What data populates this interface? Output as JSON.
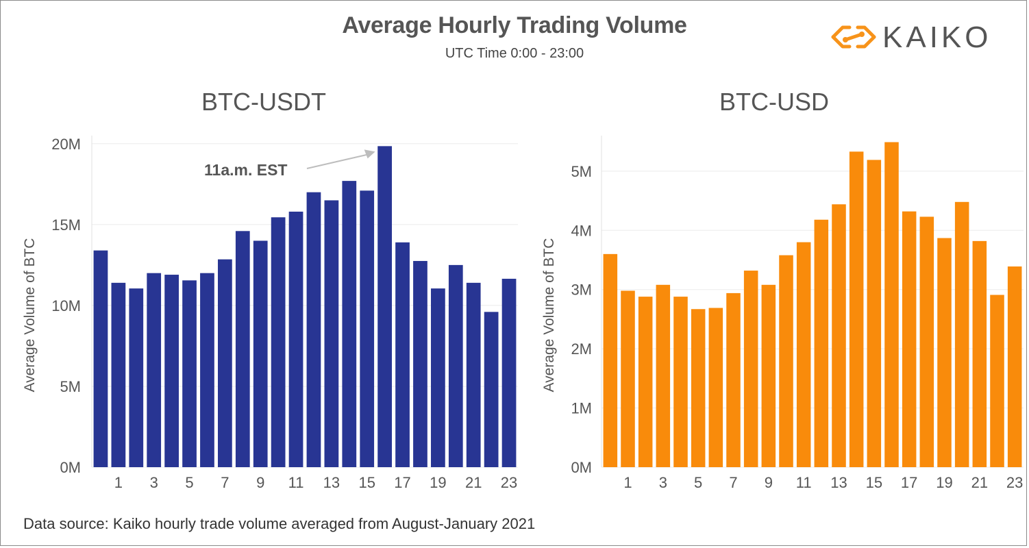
{
  "header": {
    "title": "Average Hourly Trading Volume",
    "subtitle": "UTC Time 0:00 - 23:00"
  },
  "logo": {
    "text": "KAIKO",
    "icon": "kaiko-diamond-logo-icon",
    "color": "#F7931A"
  },
  "footer": {
    "source": "Data source: Kaiko hourly trade volume averaged from August-January 2021"
  },
  "chart_data": [
    {
      "type": "bar",
      "title": "BTC-USDT",
      "ylabel": "Average Volume of BTC",
      "xlabel": "",
      "color": "#283593",
      "ylim": [
        0,
        20500000
      ],
      "yticks": [
        0,
        5000000,
        10000000,
        15000000,
        20000000
      ],
      "ytick_labels": [
        "0M",
        "5M",
        "10M",
        "15M",
        "20M"
      ],
      "xtick_labels": [
        "1",
        "3",
        "5",
        "7",
        "9",
        "11",
        "13",
        "15",
        "17",
        "19",
        "21",
        "23"
      ],
      "categories": [
        0,
        1,
        2,
        3,
        4,
        5,
        6,
        7,
        8,
        9,
        10,
        11,
        12,
        13,
        14,
        15,
        16,
        17,
        18,
        19,
        20,
        21,
        22,
        23
      ],
      "values": [
        13.4,
        11.4,
        11.05,
        12.0,
        11.9,
        11.55,
        12.0,
        12.85,
        14.6,
        14.0,
        15.45,
        15.8,
        17.0,
        16.5,
        17.7,
        17.1,
        19.85,
        13.9,
        12.75,
        11.05,
        12.5,
        11.4,
        9.6,
        11.65
      ],
      "value_unit": "M",
      "annotation": {
        "text": "11a.m. EST",
        "target_category": 16
      },
      "grid": "horizontal"
    },
    {
      "type": "bar",
      "title": "BTC-USD",
      "ylabel": "Average Volume of BTC",
      "xlabel": "",
      "color": "#F98B0B",
      "ylim": [
        0,
        5.6
      ],
      "yticks": [
        0,
        1,
        2,
        3,
        4,
        5
      ],
      "ytick_labels": [
        "0M",
        "1M",
        "2M",
        "3M",
        "4M",
        "5M"
      ],
      "xtick_labels": [
        "1",
        "3",
        "5",
        "7",
        "9",
        "11",
        "13",
        "15",
        "17",
        "19",
        "21",
        "23"
      ],
      "categories": [
        0,
        1,
        2,
        3,
        4,
        5,
        6,
        7,
        8,
        9,
        10,
        11,
        12,
        13,
        14,
        15,
        16,
        17,
        18,
        19,
        20,
        21,
        22,
        23
      ],
      "values": [
        3.6,
        2.98,
        2.88,
        3.08,
        2.88,
        2.67,
        2.69,
        2.94,
        3.32,
        3.08,
        3.58,
        3.8,
        4.18,
        4.44,
        5.33,
        5.19,
        5.49,
        4.32,
        4.23,
        3.87,
        4.48,
        3.82,
        2.91,
        3.39
      ],
      "value_unit": "M",
      "grid": "horizontal"
    }
  ]
}
